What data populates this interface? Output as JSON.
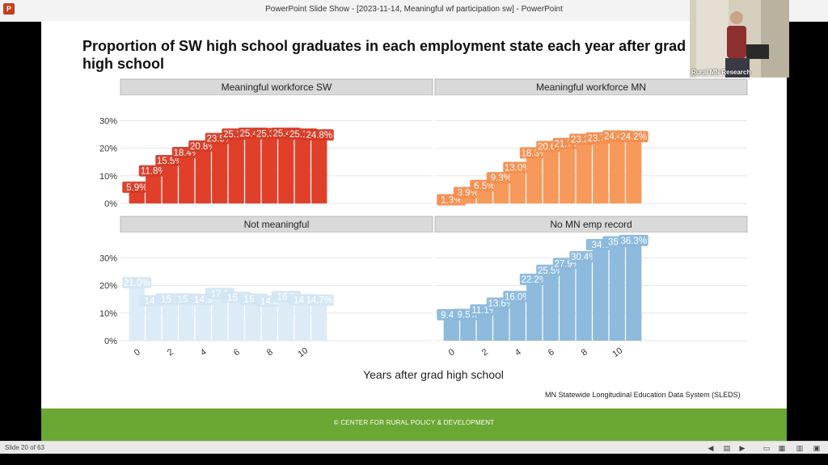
{
  "window": {
    "title": "PowerPoint Slide Show - [2023-11-14, Meaningful wf participation sw] - PowerPoint",
    "app_icon": "P"
  },
  "slide": {
    "title": "Proportion of SW high school graduates in each employment state each year after grad high school",
    "caption": "MN Statewide Longitudinal Education Data System (SLEDS)",
    "footer": "© CENTER FOR RURAL POLICY & DEVELOPMENT"
  },
  "status": {
    "slide_counter": "Slide 20 of 63"
  },
  "webcam": {
    "label": "Rural MN Research"
  },
  "chart_data": {
    "type": "bar",
    "xlabel": "Years after grad high school",
    "ylabel": "",
    "x": [
      0,
      1,
      2,
      3,
      4,
      5,
      6,
      7,
      8,
      9,
      10,
      11
    ],
    "x_ticks": [
      "0",
      "2",
      "4",
      "6",
      "8",
      "10"
    ],
    "y_ticks": [
      "0%",
      "10%",
      "20%",
      "30%"
    ],
    "ylim": [
      0,
      38
    ],
    "panels": [
      {
        "name": "Meaningful workforce SW",
        "color": "#e0402a",
        "label_color": "#d63a24",
        "values": [
          5.9,
          11.8,
          15.5,
          18.4,
          20.8,
          23.5,
          25.1,
          25.4,
          25.3,
          25.4,
          25.1,
          24.8
        ],
        "labels": [
          "5.9%",
          "11.8%",
          "15.5%",
          "18.4%",
          "20.8%",
          "23.5%",
          "25.1%",
          "25.4%",
          "25.3%",
          "25.4%",
          "25.1%",
          "24.8%"
        ]
      },
      {
        "name": "Meaningful workforce MN",
        "color": "#f8995c",
        "label_color": "#f48c4c",
        "values": [
          1.3,
          3.9,
          6.5,
          9.3,
          13.0,
          18.3,
          20.6,
          21.7,
          23.2,
          23.7,
          24.4,
          24.2
        ],
        "labels": [
          "1.3%",
          "3.9%",
          "6.5%",
          "9.3%",
          "13.0%",
          "18.3%",
          "20.6%",
          "21.7%",
          "23.2%",
          "23.7%",
          "24.4%",
          "24.2%"
        ]
      },
      {
        "name": "Not meaningful",
        "color": "#dcebf6",
        "label_color": "#d4e6f3",
        "values": [
          21.0,
          14.4,
          15.1,
          15.1,
          14.9,
          17.1,
          15.7,
          15.0,
          14.3,
          16.0,
          14.8,
          14.7
        ],
        "labels": [
          "21.0%",
          "14.4",
          "15.1",
          "15.1",
          "14.9",
          "17.1",
          "15.7",
          "15.0",
          "14.3",
          "16.0",
          "14.8",
          "14.7%"
        ]
      },
      {
        "name": "No MN emp record",
        "color": "#8dbadd",
        "label_color": "#8ab8dc",
        "values": [
          9.4,
          9.5,
          11.1,
          13.6,
          16.0,
          22.2,
          25.5,
          27.9,
          30.4,
          34.8,
          35.8,
          36.3
        ],
        "labels": [
          "9.4%",
          "9.5%",
          "11.1%",
          "13.6%",
          "16.0%",
          "22.2%",
          "25.5%",
          "27.9%",
          "30.4%",
          "34.8",
          "35.8",
          "36.3%"
        ]
      }
    ]
  }
}
